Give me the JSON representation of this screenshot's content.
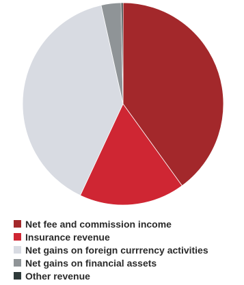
{
  "chart_data": {
    "type": "pie",
    "title": "",
    "start": "12 o'clock",
    "direction": "clockwise",
    "series": [
      {
        "values": [
          40,
          17,
          39.5,
          3.2,
          0.3
        ],
        "categories": [
          "Net fee and commission income",
          "Insurance revenue",
          "Net gains on foreign currrency activities",
          "Net gains on financial assets",
          "Other revenue"
        ],
        "colors": [
          "#a3282b",
          "#cf2633",
          "#d8dbe2",
          "#8f9497",
          "#2e3a3a"
        ]
      }
    ],
    "legend_position": "bottom"
  }
}
